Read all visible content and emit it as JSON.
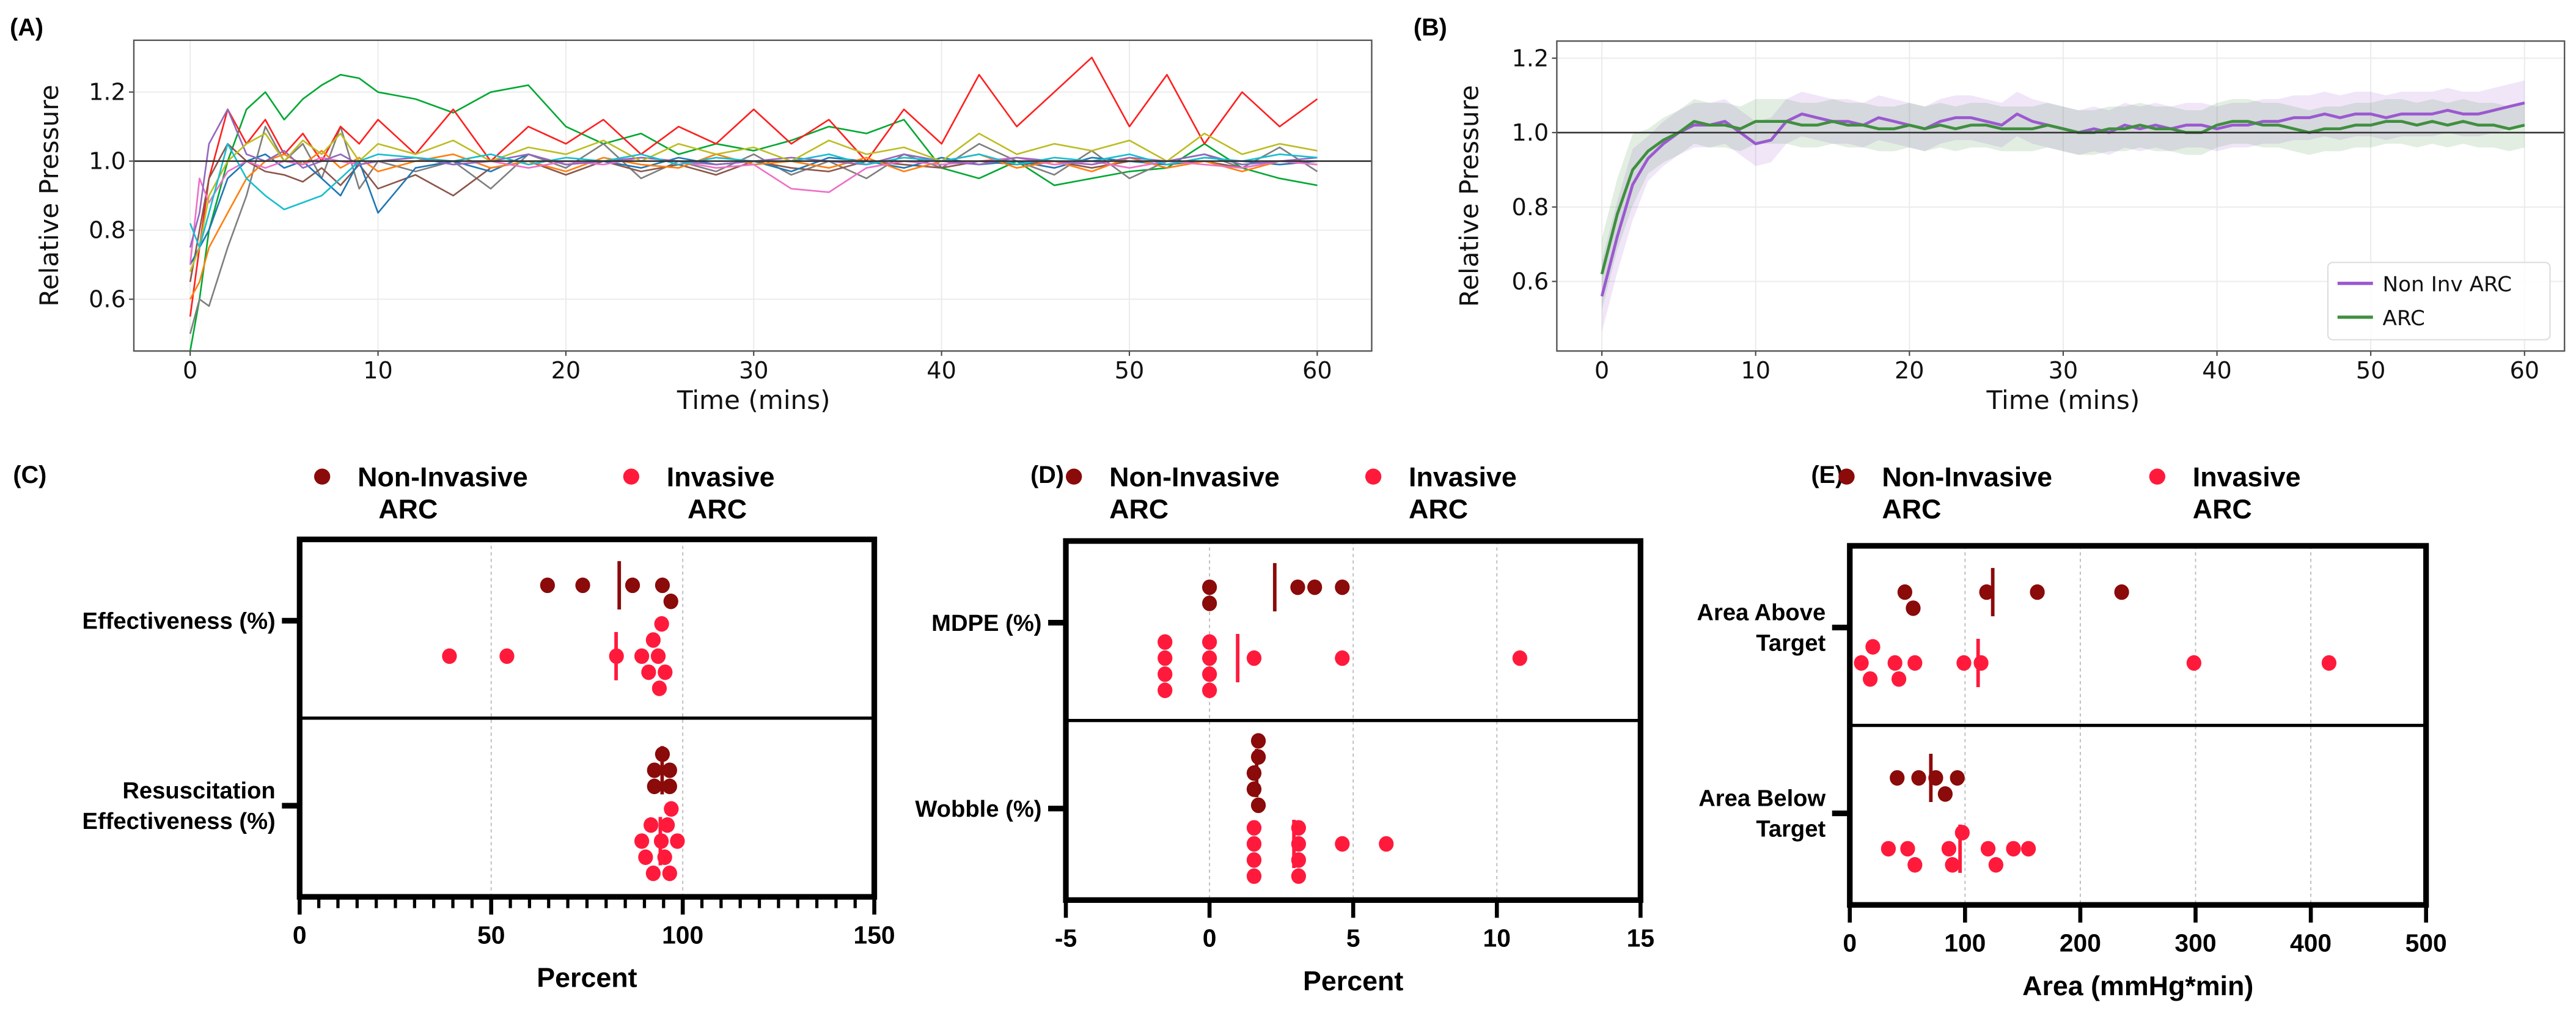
{
  "panel_labels": [
    "(A)",
    "(B)",
    "(C)",
    "(D)",
    "(E)"
  ],
  "colors": {
    "non_invasive": "#8b0a0a",
    "invasive": "#ff1a3c",
    "b_non_inv": "#9b59d0",
    "b_arc": "#3f8f3f"
  },
  "chart_data": [
    {
      "id": "A",
      "type": "line",
      "xlabel": "Time (mins)",
      "ylabel": "Relative Pressure",
      "xlim": [
        -3,
        62.9
      ],
      "ylim": [
        0.45,
        1.35
      ],
      "xticks": [
        0,
        10,
        20,
        30,
        40,
        50,
        60
      ],
      "yticks": [
        0.6,
        0.8,
        1.0,
        1.2
      ],
      "ytick_labels": [
        "0.6",
        "0.8",
        "1.0",
        "1.2"
      ],
      "reference_line": 1.0,
      "grid": true,
      "x": [
        0,
        0.5,
        1,
        2,
        3,
        4,
        5,
        6,
        7,
        8,
        9,
        10,
        12,
        14,
        16,
        18,
        20,
        22,
        24,
        26,
        28,
        30,
        32,
        34,
        36,
        38,
        40,
        42,
        44,
        46,
        48,
        50,
        52,
        54,
        56,
        58,
        60
      ],
      "series": [
        {
          "color": "#00a832",
          "values": [
            0.45,
            0.6,
            0.8,
            1.0,
            1.15,
            1.2,
            1.12,
            1.18,
            1.22,
            1.25,
            1.24,
            1.2,
            1.18,
            1.14,
            1.2,
            1.22,
            1.1,
            1.05,
            1.08,
            1.02,
            1.05,
            1.03,
            1.06,
            1.1,
            1.08,
            1.12,
            0.98,
            0.95,
            1.0,
            0.93,
            0.95,
            0.97,
            0.98,
            1.05,
            0.98,
            0.95,
            0.93
          ]
        },
        {
          "color": "#7f7f7f",
          "values": [
            0.5,
            0.6,
            0.58,
            0.75,
            0.9,
            1.1,
            1.0,
            1.05,
            0.95,
            1.1,
            0.92,
            1.0,
            0.97,
            1.0,
            0.92,
            1.02,
            0.98,
            1.05,
            0.95,
            1.0,
            0.97,
            1.02,
            0.96,
            1.0,
            0.95,
            1.02,
            0.98,
            1.05,
            1.0,
            0.96,
            1.03,
            0.95,
            1.0,
            1.02,
            0.98,
            1.04,
            0.97
          ]
        },
        {
          "color": "#ff1f1f",
          "values": [
            0.55,
            0.75,
            0.95,
            1.15,
            1.05,
            1.12,
            1.02,
            1.08,
            1.0,
            1.1,
            1.05,
            1.12,
            1.02,
            1.15,
            1.0,
            1.1,
            1.05,
            1.12,
            1.02,
            1.1,
            1.05,
            1.15,
            1.05,
            1.12,
            1.0,
            1.15,
            1.05,
            1.25,
            1.1,
            1.2,
            1.3,
            1.1,
            1.25,
            1.05,
            1.2,
            1.1,
            1.18
          ]
        },
        {
          "color": "#8c564b",
          "values": [
            0.65,
            0.8,
            0.95,
            1.05,
            1.0,
            0.97,
            0.96,
            0.94,
            0.98,
            0.93,
            0.99,
            0.92,
            0.96,
            0.9,
            0.98,
            1.0,
            0.96,
            1.0,
            0.97,
            0.99,
            0.96,
            1.0,
            0.98,
            0.97,
            1.0,
            0.99,
            0.98,
            1.0,
            0.99,
            1.0,
            0.98,
            1.0,
            0.99,
            1.0,
            0.98,
            1.0,
            1.0
          ]
        },
        {
          "color": "#1f77b4",
          "values": [
            0.7,
            0.75,
            0.8,
            0.95,
            1.0,
            1.02,
            0.98,
            1.0,
            0.95,
            0.9,
            1.0,
            0.85,
            0.98,
            1.0,
            0.97,
            1.02,
            0.99,
            1.0,
            0.98,
            1.01,
            0.99,
            1.0,
            0.97,
            1.01,
            1.0,
            0.98,
            1.01,
            0.99,
            1.0,
            0.98,
            1.01,
            1.0,
            0.99,
            1.01,
            1.0,
            0.99,
            1.0
          ]
        },
        {
          "color": "#ff7f0e",
          "values": [
            0.6,
            0.65,
            0.75,
            0.85,
            0.95,
            1.0,
            1.02,
            0.99,
            1.03,
            0.98,
            1.01,
            0.97,
            1.0,
            1.02,
            0.98,
            1.0,
            0.97,
            1.01,
            0.99,
            0.98,
            1.02,
            0.99,
            1.0,
            0.98,
            1.01,
            0.97,
            1.0,
            1.02,
            0.98,
            1.0,
            0.97,
            1.01,
            0.98,
            1.0,
            0.97,
            1.0,
            0.99
          ]
        },
        {
          "color": "#ee6fc8",
          "values": [
            0.7,
            0.95,
            0.88,
            0.97,
            1.0,
            0.98,
            1.0,
            0.99,
            1.01,
            1.0,
            0.99,
            1.0,
            1.01,
            0.99,
            1.0,
            0.98,
            1.0,
            0.99,
            1.01,
            1.0,
            0.98,
            0.99,
            0.92,
            0.91,
            0.98,
            1.0,
            0.99,
            1.0,
            1.01,
            0.99,
            1.0,
            0.98,
            1.0,
            0.99,
            0.98,
            1.0,
            0.99
          ]
        },
        {
          "color": "#9467bd",
          "values": [
            0.75,
            0.85,
            1.05,
            1.15,
            1.02,
            1.0,
            1.03,
            0.98,
            1.0,
            1.02,
            0.99,
            1.0,
            1.01,
            0.99,
            1.0,
            1.02,
            0.99,
            1.0,
            1.01,
            1.0,
            0.99,
            1.0,
            1.01,
            1.0,
            0.99,
            1.02,
            1.0,
            0.99,
            1.01,
            1.0,
            0.99,
            1.01,
            1.0,
            1.02,
            0.99,
            1.0,
            1.01
          ]
        },
        {
          "color": "#bcbd22",
          "values": [
            0.68,
            0.75,
            0.9,
            1.0,
            1.05,
            1.08,
            1.0,
            1.06,
            1.02,
            1.08,
            1.0,
            1.05,
            1.02,
            1.06,
            1.0,
            1.04,
            1.02,
            1.06,
            1.0,
            1.05,
            1.02,
            1.04,
            1.0,
            1.06,
            1.02,
            1.04,
            1.0,
            1.08,
            1.02,
            1.05,
            1.03,
            1.06,
            1.0,
            1.08,
            1.02,
            1.05,
            1.03
          ]
        },
        {
          "color": "#17becf",
          "values": [
            0.82,
            0.75,
            0.85,
            1.05,
            0.95,
            0.9,
            0.86,
            0.88,
            0.9,
            0.95,
            1.0,
            1.02,
            1.01,
            1.0,
            1.02,
            0.99,
            1.01,
            1.0,
            1.02,
            0.99,
            1.01,
            1.0,
            1.0,
            1.02,
            0.99,
            1.01,
            1.0,
            1.02,
            0.99,
            1.01,
            1.0,
            1.02,
            0.99,
            1.01,
            1.0,
            1.02,
            1.01
          ]
        }
      ]
    },
    {
      "id": "B",
      "type": "line",
      "xlabel": "Time (mins)",
      "ylabel": "Relative Pressure",
      "xlim": [
        -2.93,
        62.6
      ],
      "ylim": [
        0.413,
        1.246
      ],
      "xticks": [
        0,
        10,
        20,
        30,
        40,
        50,
        60
      ],
      "yticks": [
        0.6,
        0.8,
        1.0,
        1.2
      ],
      "ytick_labels": [
        "0.6",
        "0.8",
        "1.0",
        "1.2"
      ],
      "reference_line": 1.0,
      "grid": true,
      "legend_position": "lower-right",
      "x": [
        0,
        1,
        2,
        3,
        4,
        5,
        6,
        7,
        8,
        9,
        10,
        11,
        12,
        13,
        14,
        15,
        16,
        17,
        18,
        19,
        20,
        21,
        22,
        23,
        24,
        25,
        26,
        27,
        28,
        29,
        30,
        31,
        32,
        33,
        34,
        35,
        36,
        37,
        38,
        39,
        40,
        41,
        42,
        43,
        44,
        45,
        46,
        47,
        48,
        49,
        50,
        51,
        52,
        53,
        54,
        55,
        56,
        57,
        58,
        59,
        60
      ],
      "series": [
        {
          "name": "Non Inv ARC",
          "color": "#9b59d0",
          "band": 0.06,
          "values": [
            0.56,
            0.72,
            0.86,
            0.93,
            0.97,
            1.0,
            1.02,
            1.02,
            1.03,
            1.0,
            0.97,
            0.98,
            1.03,
            1.05,
            1.04,
            1.03,
            1.03,
            1.02,
            1.04,
            1.03,
            1.02,
            1.01,
            1.03,
            1.04,
            1.04,
            1.03,
            1.02,
            1.05,
            1.03,
            1.02,
            1.01,
            1.0,
            1.01,
            1.0,
            1.02,
            1.01,
            1.02,
            1.01,
            1.02,
            1.02,
            1.01,
            1.02,
            1.02,
            1.03,
            1.03,
            1.04,
            1.04,
            1.05,
            1.04,
            1.05,
            1.05,
            1.04,
            1.05,
            1.05,
            1.05,
            1.06,
            1.05,
            1.05,
            1.06,
            1.07,
            1.08
          ]
        },
        {
          "name": "ARC",
          "color": "#3f8f3f",
          "band": 0.06,
          "values": [
            0.62,
            0.78,
            0.9,
            0.95,
            0.98,
            1.0,
            1.03,
            1.02,
            1.02,
            1.01,
            1.03,
            1.03,
            1.03,
            1.02,
            1.02,
            1.03,
            1.02,
            1.02,
            1.01,
            1.01,
            1.02,
            1.01,
            1.02,
            1.01,
            1.02,
            1.02,
            1.01,
            1.01,
            1.01,
            1.02,
            1.01,
            1.0,
            1.0,
            1.01,
            1.01,
            1.02,
            1.01,
            1.01,
            1.0,
            1.0,
            1.02,
            1.03,
            1.03,
            1.02,
            1.02,
            1.01,
            1.0,
            1.01,
            1.01,
            1.02,
            1.02,
            1.03,
            1.03,
            1.02,
            1.03,
            1.02,
            1.03,
            1.02,
            1.02,
            1.01,
            1.02
          ]
        }
      ]
    },
    {
      "id": "C",
      "type": "scatter",
      "xlabel": "Percent",
      "xlim": [
        0,
        150
      ],
      "xticks": [
        0,
        50,
        100,
        150
      ],
      "minor_step": 5,
      "legend": [
        {
          "label": [
            "Non-Invasive",
            "ARC"
          ],
          "group": "non_invasive"
        },
        {
          "label": [
            "Invasive",
            "ARC"
          ],
          "group": "invasive"
        }
      ],
      "categories": [
        {
          "label": [
            "Effectiveness (%)"
          ],
          "non_invasive": [
            64.7,
            73.9,
            86.9,
            94.7,
            96.9
          ],
          "invasive": [
            39.1,
            54.1,
            82.7,
            89.3,
            91.1,
            92.3,
            93.6,
            93.9,
            94.5,
            95.4
          ]
        },
        {
          "label": [
            "Resuscitation",
            "Effectiveness (%)"
          ],
          "non_invasive": [
            94.7,
            92.6,
            96.6,
            92.6,
            96.6
          ],
          "invasive": [
            89.3,
            94.4,
            91.7,
            96.6,
            92.3,
            97.0,
            98.6,
            90.3,
            95.3,
            96.0
          ]
        }
      ]
    },
    {
      "id": "D",
      "type": "scatter",
      "xlabel": "Percent",
      "xlim": [
        -5,
        15
      ],
      "xticks": [
        -5,
        0,
        5,
        10,
        15
      ],
      "legend": [
        {
          "label": [
            "Non-Invasive",
            "ARC"
          ],
          "group": "non_invasive"
        },
        {
          "label": [
            "Invasive",
            "ARC"
          ],
          "group": "invasive"
        }
      ],
      "categories": [
        {
          "label": [
            "MDPE (%)"
          ],
          "non_invasive": [
            0,
            0,
            3.07,
            3.66,
            4.62
          ],
          "invasive": [
            -1.55,
            -1.55,
            -1.55,
            -1.55,
            0,
            0,
            0,
            0,
            1.55,
            4.62,
            10.8
          ]
        },
        {
          "label": [
            "Wobble (%)"
          ],
          "non_invasive": [
            1.55,
            1.7,
            1.7,
            1.7,
            1.55
          ],
          "invasive": [
            1.55,
            1.55,
            1.55,
            1.55,
            3.1,
            3.1,
            3.1,
            3.1,
            4.62,
            6.15
          ]
        }
      ]
    },
    {
      "id": "E",
      "type": "scatter",
      "xlabel": "Area (mmHg*min)",
      "xlim": [
        0,
        500
      ],
      "xticks": [
        0,
        100,
        200,
        300,
        400,
        500
      ],
      "legend": [
        {
          "label": [
            "Non-Invasive",
            "ARC"
          ],
          "group": "non_invasive"
        },
        {
          "label": [
            "Invasive",
            "ARC"
          ],
          "group": "invasive"
        }
      ],
      "categories": [
        {
          "label": [
            "Area Above",
            "Target"
          ],
          "non_invasive": [
            55,
            118.7,
            162.7,
            235.9,
            47.8
          ],
          "invasive": [
            17.7,
            39.2,
            56.5,
            99,
            113.9,
            298.6,
            415.8,
            20,
            42.6,
            10
          ]
        },
        {
          "label": [
            "Area Below",
            "Target"
          ],
          "non_invasive": [
            82.8,
            41.1,
            59.8,
            74.6,
            93.3
          ],
          "invasive": [
            89,
            126.8,
            155,
            50.2,
            33.5,
            86,
            120,
            142,
            56.5,
            97.6
          ]
        }
      ]
    }
  ]
}
